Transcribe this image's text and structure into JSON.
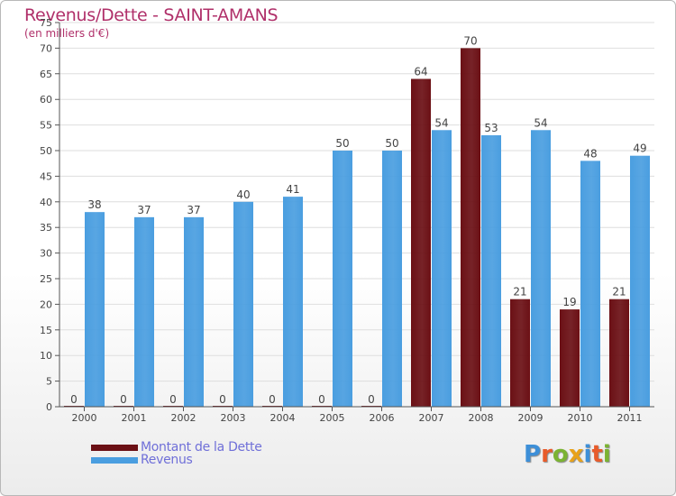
{
  "chart_data": {
    "type": "bar",
    "title": "Revenus/Dette - SAINT-AMANS",
    "subtitle": "(en milliers d'€)",
    "categories": [
      "2000",
      "2001",
      "2002",
      "2003",
      "2004",
      "2005",
      "2006",
      "2007",
      "2008",
      "2009",
      "2010",
      "2011"
    ],
    "series": [
      {
        "name": "Montant de la Dette",
        "color": "#6b1015",
        "values": [
          0,
          0,
          0,
          0,
          0,
          0,
          0,
          64,
          70,
          21,
          19,
          21
        ]
      },
      {
        "name": "Revenus",
        "color": "#4a9ee0",
        "values": [
          38,
          37,
          37,
          40,
          41,
          50,
          50,
          54,
          53,
          54,
          48,
          49
        ]
      }
    ],
    "ylim": [
      0,
      75
    ],
    "yticks": [
      0,
      5,
      10,
      15,
      20,
      25,
      30,
      35,
      40,
      45,
      50,
      55,
      60,
      65,
      70,
      75
    ],
    "grid": true,
    "legend_position": "bottom-left"
  },
  "legend": {
    "items": [
      {
        "label": "Montant de la Dette",
        "color": "#6b1015"
      },
      {
        "label": "Revenus",
        "color": "#4a9ee0"
      }
    ]
  },
  "logo": {
    "letters": [
      "P",
      "r",
      "o",
      "x",
      "i",
      "t",
      "i"
    ],
    "colors": [
      "#3d8fd8",
      "#e85b2a",
      "#7bb332",
      "#e8a21a",
      "#3d8fd8",
      "#e85b2a",
      "#7bb332"
    ]
  }
}
